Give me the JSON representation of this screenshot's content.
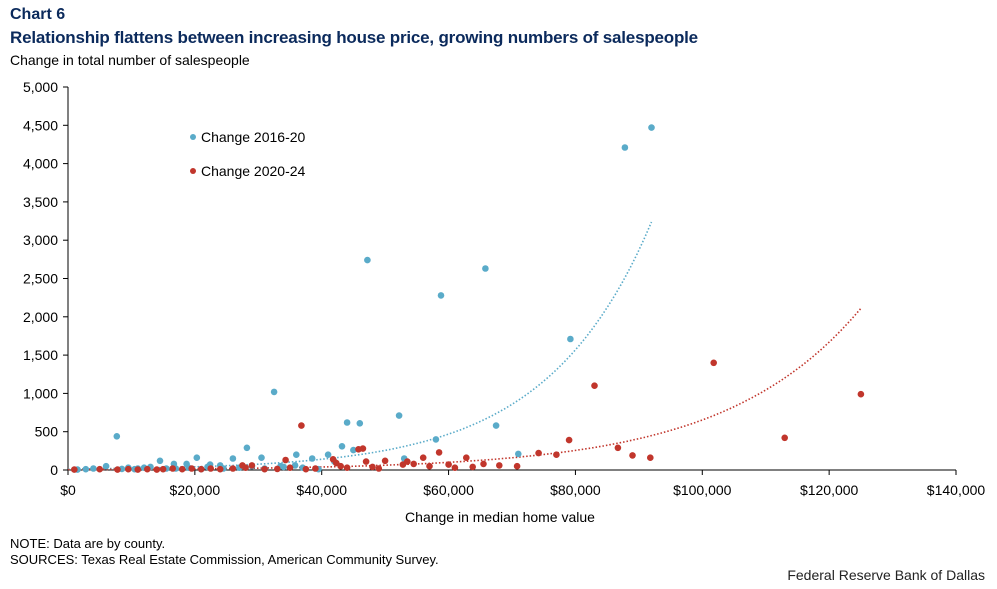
{
  "header": {
    "chart_number": "Chart 6",
    "title": "Relationship flattens between increasing house price, growing numbers of salespeople",
    "y_axis_title": "Change in total number of salespeople"
  },
  "footer": {
    "note": "NOTE: Data are by county.",
    "sources": "SOURCES: Texas Real Estate Commission, American Community Survey.",
    "credit": "Federal Reserve Bank of Dallas"
  },
  "chart_data": {
    "type": "scatter",
    "title": "Relationship flattens between increasing house price, growing numbers of salespeople",
    "xlabel": "Change in median home value",
    "ylabel": "Change in total number of salespeople",
    "xlim": [
      0,
      140000
    ],
    "ylim": [
      0,
      5000
    ],
    "x_ticks": [
      0,
      20000,
      40000,
      60000,
      80000,
      100000,
      120000,
      140000
    ],
    "x_tick_labels": [
      "$0",
      "$20,000",
      "$40,000",
      "$60,000",
      "$80,000",
      "$100,000",
      "$120,000",
      "$140,000"
    ],
    "y_ticks": [
      0,
      500,
      1000,
      1500,
      2000,
      2500,
      3000,
      3500,
      4000,
      4500,
      5000
    ],
    "y_tick_labels": [
      "0",
      "500",
      "1,000",
      "1,500",
      "2,000",
      "2,500",
      "3,000",
      "3,500",
      "4,000",
      "4,500",
      "5,000"
    ],
    "grid": false,
    "legend_position": "top-left",
    "series": [
      {
        "name": "Change 2016-20",
        "color": "#5aabc9",
        "points": [
          [
            92000,
            4470
          ],
          [
            87800,
            4210
          ],
          [
            47200,
            2740
          ],
          [
            65800,
            2630
          ],
          [
            58800,
            2280
          ],
          [
            79200,
            1710
          ],
          [
            32500,
            1020
          ],
          [
            52200,
            710
          ],
          [
            44000,
            620
          ],
          [
            46000,
            610
          ],
          [
            67500,
            580
          ],
          [
            7700,
            440
          ],
          [
            58000,
            400
          ],
          [
            45000,
            260
          ],
          [
            43200,
            310
          ],
          [
            28200,
            290
          ],
          [
            41000,
            200
          ],
          [
            36000,
            200
          ],
          [
            38500,
            150
          ],
          [
            30500,
            160
          ],
          [
            20300,
            160
          ],
          [
            14500,
            120
          ],
          [
            16700,
            80
          ],
          [
            18700,
            80
          ],
          [
            22400,
            70
          ],
          [
            24000,
            60
          ],
          [
            26000,
            150
          ],
          [
            53000,
            150
          ],
          [
            71000,
            210
          ],
          [
            33500,
            50
          ],
          [
            35800,
            60
          ],
          [
            42000,
            110
          ],
          [
            2800,
            10
          ],
          [
            4000,
            20
          ],
          [
            6000,
            50
          ],
          [
            9500,
            30
          ],
          [
            11000,
            20
          ],
          [
            12000,
            30
          ],
          [
            13000,
            40
          ],
          [
            15500,
            20
          ],
          [
            17000,
            20
          ],
          [
            19000,
            30
          ],
          [
            21000,
            10
          ],
          [
            22000,
            40
          ],
          [
            24500,
            20
          ],
          [
            27000,
            30
          ],
          [
            29000,
            50
          ],
          [
            31000,
            20
          ],
          [
            34000,
            40
          ],
          [
            37000,
            30
          ],
          [
            39500,
            10
          ],
          [
            1500,
            5
          ],
          [
            8500,
            15
          ],
          [
            10500,
            10
          ]
        ]
      },
      {
        "name": "Change 2020-24",
        "color": "#c1362c",
        "points": [
          [
            125000,
            990
          ],
          [
            101800,
            1400
          ],
          [
            83000,
            1100
          ],
          [
            113000,
            420
          ],
          [
            79000,
            390
          ],
          [
            36800,
            580
          ],
          [
            86700,
            290
          ],
          [
            89000,
            190
          ],
          [
            91800,
            160
          ],
          [
            74200,
            220
          ],
          [
            77000,
            200
          ],
          [
            68000,
            60
          ],
          [
            70800,
            50
          ],
          [
            65500,
            80
          ],
          [
            62800,
            160
          ],
          [
            63800,
            40
          ],
          [
            58500,
            230
          ],
          [
            56000,
            160
          ],
          [
            57000,
            50
          ],
          [
            61000,
            30
          ],
          [
            60000,
            70
          ],
          [
            53500,
            110
          ],
          [
            52800,
            70
          ],
          [
            54500,
            80
          ],
          [
            50000,
            120
          ],
          [
            48000,
            40
          ],
          [
            46500,
            280
          ],
          [
            45800,
            270
          ],
          [
            47000,
            110
          ],
          [
            49000,
            20
          ],
          [
            44000,
            30
          ],
          [
            42300,
            90
          ],
          [
            41800,
            140
          ],
          [
            43000,
            50
          ],
          [
            34300,
            130
          ],
          [
            35000,
            30
          ],
          [
            29000,
            60
          ],
          [
            28000,
            30
          ],
          [
            27500,
            60
          ],
          [
            26000,
            20
          ],
          [
            24000,
            10
          ],
          [
            22500,
            20
          ],
          [
            21000,
            10
          ],
          [
            19500,
            20
          ],
          [
            18000,
            10
          ],
          [
            16500,
            20
          ],
          [
            15000,
            10
          ],
          [
            14000,
            5
          ],
          [
            12500,
            10
          ],
          [
            11000,
            5
          ],
          [
            9500,
            10
          ],
          [
            7800,
            5
          ],
          [
            5000,
            10
          ],
          [
            1000,
            5
          ],
          [
            31000,
            10
          ],
          [
            39000,
            20
          ],
          [
            33000,
            15
          ],
          [
            37500,
            10
          ]
        ]
      }
    ],
    "trendlines": [
      {
        "series": "Change 2016-20",
        "type": "exponential",
        "x_range": [
          0,
          92000
        ],
        "a": 12.5,
        "b": 6.04e-05
      },
      {
        "series": "Change 2020-24",
        "type": "exponential",
        "x_range": [
          0,
          125000
        ],
        "a": 6.0,
        "b": 4.69e-05
      }
    ]
  }
}
